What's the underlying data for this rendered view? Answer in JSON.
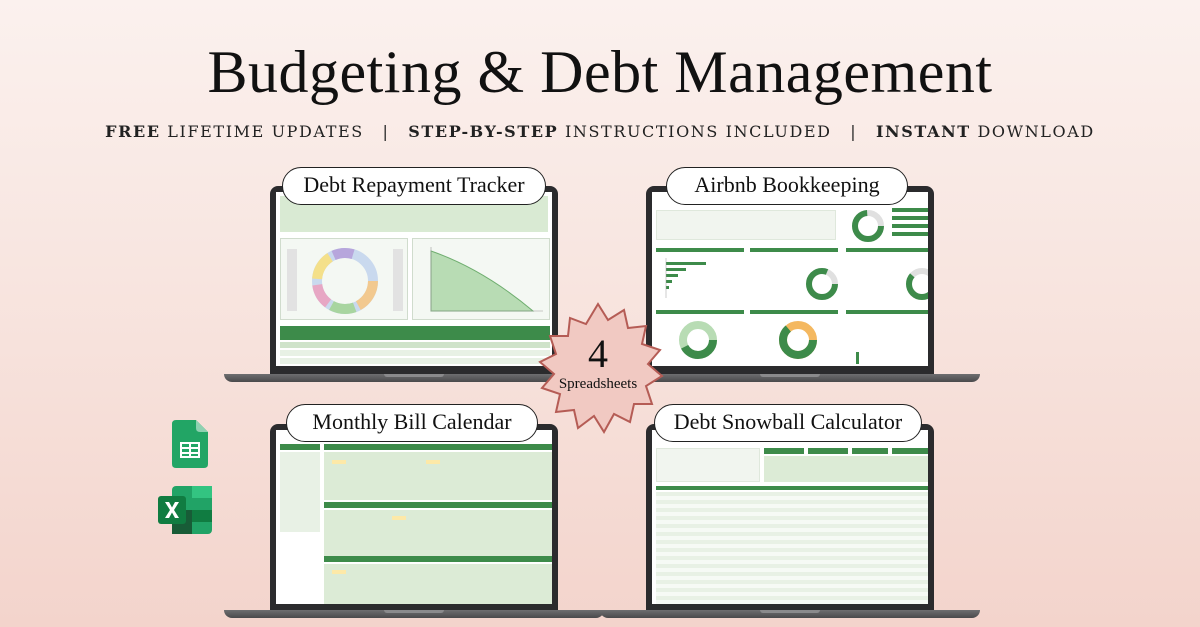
{
  "title": "Budgeting & Debt Management",
  "subtitle": {
    "part1_bold": "FREE",
    "part1_rest": " LIFETIME UPDATES",
    "separator": "|",
    "part2_bold": "STEP-BY-STEP",
    "part2_rest": " INSTRUCTIONS INCLUDED",
    "part3_bold": "INSTANT",
    "part3_rest": " DOWNLOAD"
  },
  "products": {
    "debt_repayment": "Debt Repayment Tracker",
    "airbnb": "Airbnb Bookkeeping",
    "bill_calendar": "Monthly Bill Calendar",
    "snowball": "Debt Snowball Calculator"
  },
  "badge": {
    "number": "4",
    "label": "Spreadsheets"
  },
  "icons": {
    "sheets": "google-sheets-icon",
    "excel": "excel-icon"
  },
  "colors": {
    "accent_green": "#3d8b4a",
    "light_green": "#d9ead3",
    "badge_fill": "#f1c9c2",
    "badge_stroke": "#b55c55"
  }
}
